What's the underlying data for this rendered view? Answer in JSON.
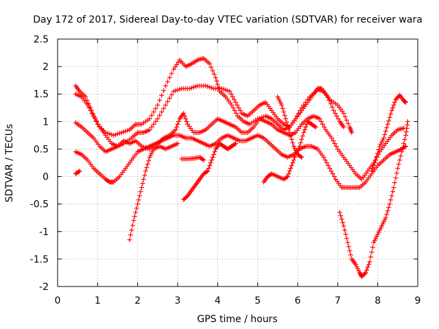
{
  "chart_data": {
    "type": "scatter",
    "title": "Day 172 of 2017, Sidereal Day-to-day VTEC variation (SDTVAR) for receiver wara",
    "xlabel": "GPS time / hours",
    "ylabel": "SDTVAR / TECUs",
    "xlim": [
      0,
      9
    ],
    "ylim": [
      -2,
      2.5
    ],
    "xticks": [
      "0",
      "1",
      "2",
      "3",
      "4",
      "5",
      "6",
      "7",
      "8",
      "9"
    ],
    "yticks": [
      "-2",
      "-1.5",
      "-1",
      "-0.5",
      "0",
      "0.5",
      "1",
      "1.5",
      "2",
      "2.5"
    ],
    "grid": true,
    "marker": "plus",
    "color": "#ff0000",
    "series": [
      {
        "points": [
          [
            0.45,
            1.65
          ],
          [
            0.55,
            1.55
          ],
          [
            0.7,
            1.45
          ],
          [
            0.85,
            1.2
          ],
          [
            1.0,
            0.95
          ],
          [
            1.2,
            0.8
          ],
          [
            1.4,
            0.75
          ],
          [
            1.6,
            0.8
          ],
          [
            1.8,
            0.85
          ],
          [
            1.95,
            0.95
          ],
          [
            2.1,
            0.95
          ],
          [
            2.3,
            1.05
          ],
          [
            2.5,
            1.3
          ],
          [
            2.7,
            1.65
          ],
          [
            2.9,
            1.95
          ],
          [
            3.05,
            2.12
          ],
          [
            3.2,
            2.0
          ],
          [
            3.35,
            2.05
          ],
          [
            3.5,
            2.12
          ],
          [
            3.65,
            2.15
          ],
          [
            3.8,
            2.05
          ],
          [
            3.95,
            1.8
          ],
          [
            4.05,
            1.55
          ],
          [
            4.2,
            1.45
          ],
          [
            4.35,
            1.3
          ],
          [
            4.5,
            1.1
          ],
          [
            4.65,
            1.0
          ],
          [
            4.8,
            0.95
          ],
          [
            5.0,
            1.05
          ],
          [
            5.2,
            1.1
          ],
          [
            5.35,
            1.05
          ],
          [
            5.5,
            0.95
          ],
          [
            5.65,
            0.85
          ],
          [
            5.8,
            0.9
          ],
          [
            5.95,
            1.05
          ],
          [
            6.1,
            1.25
          ],
          [
            6.3,
            1.45
          ],
          [
            6.5,
            1.58
          ],
          [
            6.65,
            1.55
          ],
          [
            6.8,
            1.4
          ],
          [
            7.0,
            1.3
          ],
          [
            7.15,
            1.15
          ],
          [
            7.3,
            0.9
          ],
          [
            7.35,
            0.8
          ]
        ]
      },
      {
        "points": [
          [
            0.45,
            1.5
          ],
          [
            0.6,
            1.45
          ],
          [
            0.75,
            1.3
          ],
          [
            0.9,
            1.1
          ],
          [
            1.05,
            0.9
          ],
          [
            1.2,
            0.75
          ],
          [
            1.35,
            0.6
          ],
          [
            1.5,
            0.55
          ],
          [
            1.65,
            0.6
          ],
          [
            1.85,
            0.7
          ],
          [
            2.0,
            0.8
          ],
          [
            2.15,
            0.8
          ],
          [
            2.3,
            0.85
          ],
          [
            2.5,
            1.05
          ],
          [
            2.7,
            1.3
          ],
          [
            2.9,
            1.55
          ],
          [
            3.1,
            1.6
          ],
          [
            3.3,
            1.6
          ],
          [
            3.5,
            1.65
          ],
          [
            3.7,
            1.65
          ],
          [
            3.9,
            1.6
          ],
          [
            4.1,
            1.6
          ],
          [
            4.3,
            1.55
          ],
          [
            4.45,
            1.35
          ],
          [
            4.6,
            1.15
          ],
          [
            4.75,
            1.1
          ],
          [
            4.9,
            1.2
          ],
          [
            5.05,
            1.3
          ],
          [
            5.2,
            1.35
          ],
          [
            5.35,
            1.2
          ],
          [
            5.5,
            1.05
          ],
          [
            5.65,
            0.95
          ],
          [
            5.8,
            0.9
          ],
          [
            5.95,
            1.05
          ],
          [
            6.1,
            1.2
          ],
          [
            6.25,
            1.35
          ],
          [
            6.4,
            1.5
          ],
          [
            6.5,
            1.6
          ],
          [
            6.6,
            1.6
          ],
          [
            6.75,
            1.45
          ],
          [
            6.9,
            1.2
          ],
          [
            7.05,
            1.0
          ],
          [
            7.15,
            0.9
          ]
        ]
      },
      {
        "points": [
          [
            0.45,
            0.98
          ],
          [
            0.6,
            0.9
          ],
          [
            0.75,
            0.8
          ],
          [
            0.9,
            0.7
          ],
          [
            1.05,
            0.55
          ],
          [
            1.2,
            0.45
          ],
          [
            1.35,
            0.5
          ],
          [
            1.5,
            0.55
          ],
          [
            1.65,
            0.65
          ],
          [
            1.8,
            0.6
          ],
          [
            1.95,
            0.65
          ],
          [
            2.1,
            0.55
          ],
          [
            2.3,
            0.5
          ],
          [
            2.5,
            0.6
          ],
          [
            2.65,
            0.7
          ],
          [
            2.8,
            0.75
          ],
          [
            2.95,
            0.85
          ],
          [
            3.05,
            1.05
          ],
          [
            3.15,
            1.15
          ],
          [
            3.25,
            0.95
          ],
          [
            3.4,
            0.8
          ],
          [
            3.55,
            0.8
          ],
          [
            3.7,
            0.85
          ],
          [
            3.85,
            0.95
          ],
          [
            4.0,
            1.05
          ],
          [
            4.15,
            1.0
          ],
          [
            4.3,
            0.95
          ],
          [
            4.45,
            0.9
          ],
          [
            4.6,
            0.8
          ],
          [
            4.75,
            0.8
          ],
          [
            4.9,
            0.9
          ],
          [
            5.05,
            1.05
          ],
          [
            5.2,
            1.0
          ],
          [
            5.35,
            0.95
          ],
          [
            5.5,
            0.85
          ],
          [
            5.65,
            0.8
          ],
          [
            5.8,
            0.75
          ],
          [
            5.95,
            0.8
          ],
          [
            6.1,
            0.95
          ],
          [
            6.25,
            1.05
          ],
          [
            6.4,
            1.1
          ],
          [
            6.55,
            1.05
          ],
          [
            6.7,
            0.85
          ],
          [
            6.85,
            0.7
          ],
          [
            7.0,
            0.5
          ],
          [
            7.15,
            0.35
          ],
          [
            7.3,
            0.2
          ],
          [
            7.45,
            0.05
          ],
          [
            7.6,
            -0.05
          ],
          [
            7.75,
            0.1
          ],
          [
            7.9,
            0.25
          ],
          [
            8.05,
            0.45
          ],
          [
            8.2,
            0.6
          ],
          [
            8.35,
            0.75
          ],
          [
            8.5,
            0.85
          ],
          [
            8.65,
            0.88
          ]
        ]
      },
      {
        "points": [
          [
            0.45,
            0.45
          ],
          [
            0.6,
            0.4
          ],
          [
            0.75,
            0.3
          ],
          [
            0.9,
            0.15
          ],
          [
            1.05,
            0.05
          ],
          [
            1.2,
            -0.05
          ],
          [
            1.3,
            -0.1
          ],
          [
            1.4,
            -0.1
          ],
          [
            1.55,
            0.0
          ],
          [
            1.7,
            0.15
          ],
          [
            1.85,
            0.3
          ],
          [
            2.0,
            0.45
          ],
          [
            2.15,
            0.5
          ],
          [
            2.3,
            0.55
          ],
          [
            2.45,
            0.6
          ],
          [
            2.6,
            0.65
          ],
          [
            2.75,
            0.7
          ],
          [
            2.9,
            0.75
          ],
          [
            3.05,
            0.75
          ],
          [
            3.2,
            0.7
          ],
          [
            3.35,
            0.7
          ],
          [
            3.5,
            0.65
          ],
          [
            3.65,
            0.6
          ],
          [
            3.8,
            0.55
          ],
          [
            3.95,
            0.6
          ],
          [
            4.1,
            0.7
          ],
          [
            4.25,
            0.75
          ],
          [
            4.4,
            0.7
          ],
          [
            4.55,
            0.65
          ],
          [
            4.7,
            0.65
          ],
          [
            4.85,
            0.7
          ],
          [
            5.0,
            0.75
          ],
          [
            5.15,
            0.7
          ],
          [
            5.3,
            0.6
          ],
          [
            5.45,
            0.5
          ],
          [
            5.6,
            0.4
          ],
          [
            5.75,
            0.35
          ],
          [
            5.9,
            0.4
          ],
          [
            6.05,
            0.5
          ],
          [
            6.2,
            0.55
          ],
          [
            6.35,
            0.55
          ],
          [
            6.5,
            0.5
          ],
          [
            6.65,
            0.35
          ],
          [
            6.8,
            0.15
          ],
          [
            6.95,
            -0.05
          ],
          [
            7.1,
            -0.2
          ],
          [
            7.25,
            -0.2
          ],
          [
            7.4,
            -0.2
          ],
          [
            7.55,
            -0.2
          ],
          [
            7.7,
            -0.1
          ],
          [
            7.85,
            0.05
          ],
          [
            8.0,
            0.2
          ],
          [
            8.15,
            0.3
          ],
          [
            8.3,
            0.4
          ],
          [
            8.45,
            0.45
          ],
          [
            8.6,
            0.5
          ],
          [
            8.7,
            0.55
          ]
        ]
      },
      {
        "points": [
          [
            1.8,
            -1.15
          ],
          [
            1.9,
            -0.8
          ],
          [
            2.0,
            -0.5
          ],
          [
            2.1,
            -0.2
          ],
          [
            2.2,
            0.1
          ],
          [
            2.3,
            0.35
          ],
          [
            2.4,
            0.5
          ],
          [
            2.55,
            0.55
          ],
          [
            2.7,
            0.5
          ],
          [
            2.85,
            0.55
          ],
          [
            3.0,
            0.6
          ]
        ]
      },
      {
        "points": [
          [
            3.15,
            -0.42
          ],
          [
            3.25,
            -0.35
          ],
          [
            3.35,
            -0.25
          ],
          [
            3.45,
            -0.15
          ],
          [
            3.55,
            -0.05
          ],
          [
            3.65,
            0.05
          ],
          [
            3.75,
            0.1
          ],
          [
            3.85,
            0.3
          ],
          [
            3.95,
            0.5
          ],
          [
            4.05,
            0.6
          ],
          [
            4.15,
            0.55
          ],
          [
            4.25,
            0.5
          ],
          [
            4.35,
            0.55
          ],
          [
            4.45,
            0.6
          ]
        ]
      },
      {
        "points": [
          [
            3.1,
            0.32
          ],
          [
            3.25,
            0.32
          ],
          [
            3.4,
            0.33
          ],
          [
            3.55,
            0.35
          ],
          [
            3.65,
            0.3
          ]
        ]
      },
      {
        "points": [
          [
            5.15,
            -0.1
          ],
          [
            5.25,
            0.0
          ],
          [
            5.35,
            0.05
          ],
          [
            5.5,
            0.0
          ],
          [
            5.65,
            -0.05
          ],
          [
            5.75,
            0.0
          ],
          [
            5.85,
            0.2
          ],
          [
            5.95,
            0.4
          ],
          [
            6.05,
            0.55
          ],
          [
            6.15,
            0.8
          ],
          [
            6.25,
            1.0
          ],
          [
            6.35,
            0.95
          ],
          [
            6.45,
            0.9
          ]
        ]
      },
      {
        "points": [
          [
            5.5,
            1.45
          ],
          [
            5.6,
            1.3
          ],
          [
            5.7,
            1.05
          ],
          [
            5.8,
            0.8
          ],
          [
            5.9,
            0.55
          ],
          [
            6.0,
            0.4
          ],
          [
            6.1,
            0.35
          ]
        ]
      },
      {
        "points": [
          [
            7.05,
            -0.65
          ],
          [
            7.15,
            -0.9
          ],
          [
            7.25,
            -1.2
          ],
          [
            7.35,
            -1.5
          ],
          [
            7.45,
            -1.6
          ],
          [
            7.55,
            -1.75
          ],
          [
            7.6,
            -1.82
          ],
          [
            7.7,
            -1.75
          ],
          [
            7.8,
            -1.55
          ],
          [
            7.9,
            -1.2
          ],
          [
            8.0,
            -1.05
          ],
          [
            8.1,
            -0.9
          ],
          [
            8.2,
            -0.75
          ],
          [
            8.3,
            -0.5
          ],
          [
            8.4,
            -0.2
          ],
          [
            8.5,
            0.15
          ],
          [
            8.6,
            0.45
          ],
          [
            8.7,
            0.75
          ],
          [
            8.75,
            1.0
          ]
        ]
      },
      {
        "points": [
          [
            7.85,
            0.1
          ],
          [
            7.95,
            0.3
          ],
          [
            8.05,
            0.55
          ],
          [
            8.15,
            0.7
          ],
          [
            8.25,
            0.95
          ],
          [
            8.35,
            1.2
          ],
          [
            8.45,
            1.4
          ],
          [
            8.55,
            1.48
          ],
          [
            8.65,
            1.38
          ],
          [
            8.7,
            1.35
          ]
        ]
      },
      {
        "points": [
          [
            0.45,
            0.05
          ],
          [
            0.55,
            0.1
          ]
        ]
      }
    ]
  }
}
